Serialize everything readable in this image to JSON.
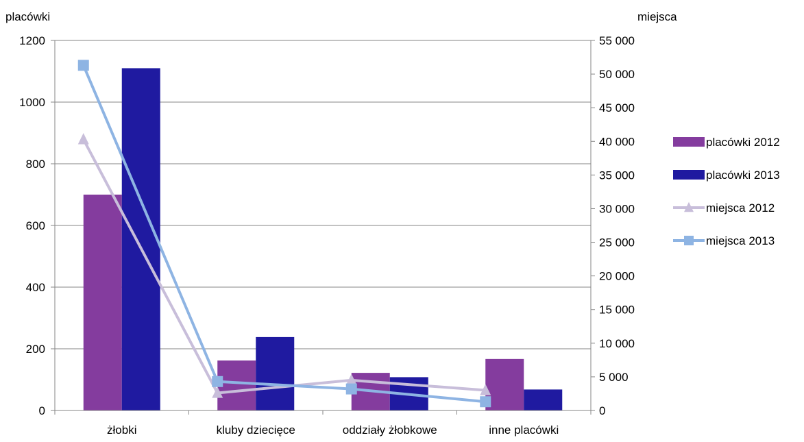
{
  "chart_data": {
    "type": "bar",
    "categories": [
      "żłobki",
      "kluby dziecięce",
      "oddziały żłobkowe",
      "inne placówki"
    ],
    "y_left": {
      "label": "placówki",
      "ylim": [
        0,
        1200
      ],
      "ticks": [
        0,
        200,
        400,
        600,
        800,
        1000,
        1200
      ],
      "tick_labels": [
        "0",
        "200",
        "400",
        "600",
        "800",
        "1000",
        "1200"
      ]
    },
    "y_right": {
      "label": "miejsca",
      "ylim": [
        0,
        55000
      ],
      "ticks": [
        0,
        5000,
        10000,
        15000,
        20000,
        25000,
        30000,
        35000,
        40000,
        45000,
        50000,
        55000
      ],
      "tick_labels": [
        "0",
        "5 000",
        "10 000",
        "15 000",
        "20 000",
        "25 000",
        "30 000",
        "35 000",
        "40 000",
        "45 000",
        "50 000",
        "55 000"
      ]
    },
    "series": [
      {
        "name": "placówki 2012",
        "type": "bar",
        "axis": "left",
        "color": "#843C9E",
        "values": [
          700,
          162,
          122,
          167
        ]
      },
      {
        "name": "placówki 2013",
        "type": "bar",
        "axis": "left",
        "color": "#1F1AA0",
        "values": [
          1110,
          238,
          108,
          68
        ]
      },
      {
        "name": "miejsca 2012",
        "type": "line",
        "axis": "right",
        "marker": "triangle",
        "color": "#C8BEDA",
        "values": [
          40300,
          2600,
          4500,
          3000
        ]
      },
      {
        "name": "miejsca 2013",
        "type": "line",
        "axis": "right",
        "marker": "square",
        "color": "#8EB4E3",
        "values": [
          51300,
          4300,
          3200,
          1300
        ]
      }
    ],
    "grid": "horizontal",
    "legend_position": "right"
  }
}
